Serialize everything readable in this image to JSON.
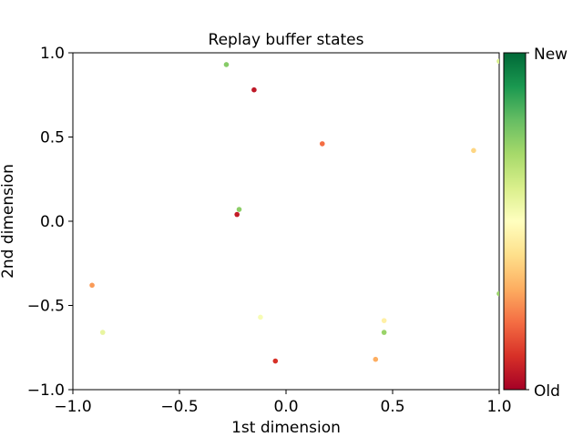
{
  "chart_data": {
    "type": "scatter",
    "title": "Replay buffer states",
    "xlabel": "1st dimension",
    "ylabel": "2nd dimension",
    "xlim": [
      -1.0,
      1.0
    ],
    "ylim": [
      -1.0,
      1.0
    ],
    "xticks": [
      -1.0,
      -0.5,
      0.0,
      0.5,
      1.0
    ],
    "xtick_labels": [
      "−1.0",
      "−0.5",
      "0.0",
      "0.5",
      "1.0"
    ],
    "yticks": [
      -1.0,
      -0.5,
      0.0,
      0.5,
      1.0
    ],
    "ytick_labels": [
      "−1.0",
      "−0.5",
      "0.0",
      "0.5",
      "1.0"
    ],
    "grid": false,
    "colormap": "RdYlGn",
    "colorbar": {
      "top_label": "New",
      "bottom_label": "Old"
    },
    "points": [
      {
        "x": -0.28,
        "y": 0.93,
        "c": 0.75
      },
      {
        "x": -0.15,
        "y": 0.78,
        "c": 0.05
      },
      {
        "x": 0.17,
        "y": 0.46,
        "c": 0.2
      },
      {
        "x": 0.88,
        "y": 0.42,
        "c": 0.38
      },
      {
        "x": -0.22,
        "y": 0.07,
        "c": 0.74
      },
      {
        "x": -0.23,
        "y": 0.04,
        "c": 0.06
      },
      {
        "x": -0.91,
        "y": -0.38,
        "c": 0.27
      },
      {
        "x": -0.86,
        "y": -0.66,
        "c": 0.56
      },
      {
        "x": -0.12,
        "y": -0.57,
        "c": 0.52
      },
      {
        "x": 0.46,
        "y": -0.59,
        "c": 0.45
      },
      {
        "x": 0.46,
        "y": -0.66,
        "c": 0.72
      },
      {
        "x": 0.42,
        "y": -0.82,
        "c": 0.3
      },
      {
        "x": -0.05,
        "y": -0.83,
        "c": 0.1
      },
      {
        "x": 1.0,
        "y": -0.43,
        "c": 0.72
      },
      {
        "x": 1.0,
        "y": 0.95,
        "c": 0.6
      }
    ]
  }
}
